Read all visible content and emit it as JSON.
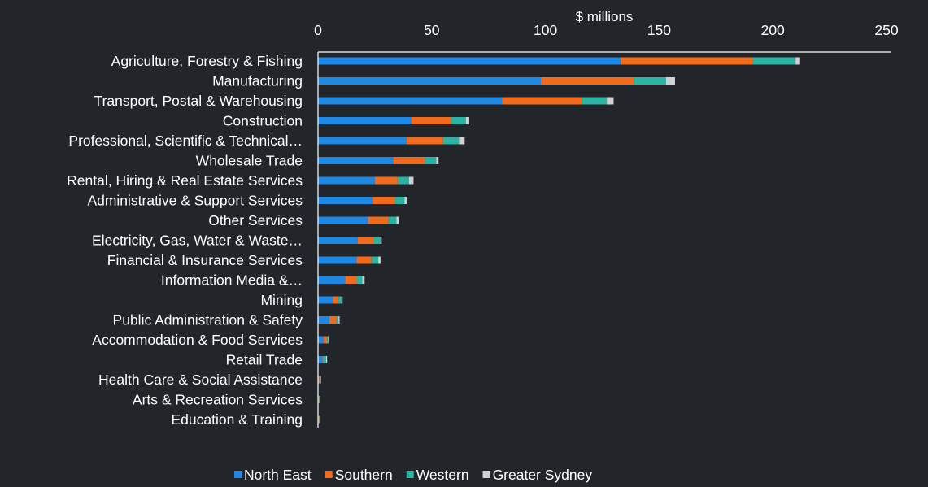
{
  "colors": {
    "background": "#222529",
    "axis": "#ffffff"
  },
  "chart_data": {
    "type": "bar",
    "orientation": "horizontal",
    "stacked": true,
    "title": "",
    "xlabel": "$ millions",
    "ylabel": "",
    "xlim": [
      0,
      250
    ],
    "xticks": [
      0,
      50,
      100,
      150,
      200,
      250
    ],
    "x_axis_position": "top",
    "grid": false,
    "legend_position": "bottom",
    "categories": [
      "Agriculture, Forestry & Fishing",
      "Manufacturing",
      "Transport, Postal & Warehousing",
      "Construction",
      "Professional, Scientific & Technical…",
      "Wholesale Trade",
      "Rental, Hiring & Real Estate Services",
      "Administrative & Support Services",
      "Other Services",
      "Electricity, Gas, Water & Waste…",
      "Financial & Insurance Services",
      "Information Media &…",
      "Mining",
      "Public Administration & Safety",
      "Accommodation & Food Services",
      "Retail Trade",
      "Health Care & Social Assistance",
      "Arts & Recreation Services",
      "Education & Training"
    ],
    "series": [
      {
        "name": "North East",
        "color": "#1e88e5",
        "values": [
          133,
          98,
          81,
          41,
          39,
          33,
          25,
          24,
          22,
          17.5,
          17,
          12,
          6.5,
          5,
          2.5,
          2,
          0.5,
          0.3,
          0.3
        ]
      },
      {
        "name": "Southern",
        "color": "#f26b1d",
        "values": [
          58,
          41,
          35,
          17.5,
          16,
          14,
          10,
          10,
          9,
          7,
          6.5,
          5,
          2.5,
          3,
          1.5,
          0.5,
          0.3,
          0.2,
          0.2
        ]
      },
      {
        "name": "Western",
        "color": "#2bb3a3",
        "values": [
          19,
          14,
          11,
          6.5,
          7,
          5,
          5,
          4,
          3.5,
          3,
          3,
          2.5,
          1.5,
          1,
          0.5,
          1,
          0.2,
          0.2,
          0.1
        ]
      },
      {
        "name": "Greater Sydney",
        "color": "#cfd1d4",
        "values": [
          2,
          4,
          3,
          1.5,
          2.5,
          1,
          2,
          1,
          1,
          0.5,
          1,
          1,
          0.3,
          0.5,
          0.2,
          0.5,
          0.3,
          0.2,
          0.1
        ]
      }
    ]
  }
}
